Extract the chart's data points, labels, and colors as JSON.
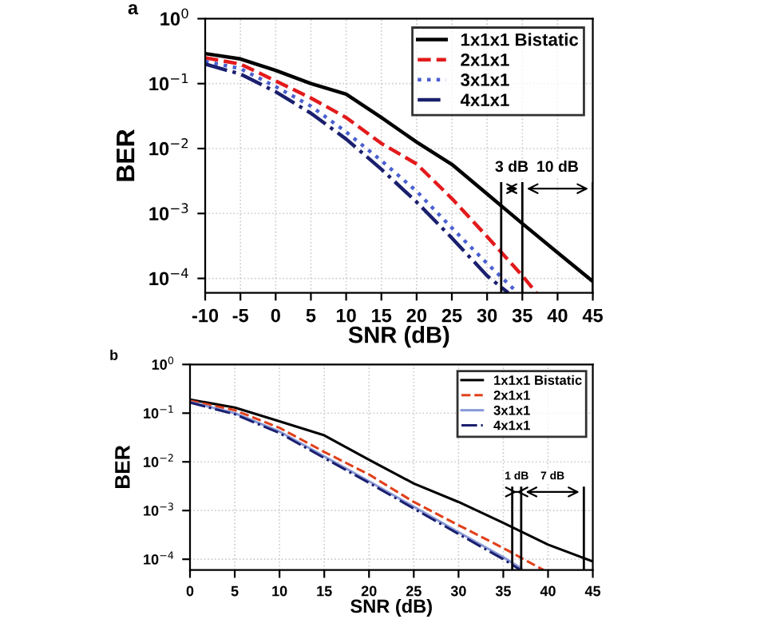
{
  "chart_data": [
    {
      "type": "line",
      "title": "a",
      "xlabel": "SNR (dB)",
      "ylabel": "BER",
      "log": "y",
      "xlim": [
        -10,
        45
      ],
      "xticks": [
        -10,
        -5,
        0,
        5,
        10,
        15,
        20,
        25,
        30,
        35,
        40,
        45
      ],
      "ylim": [
        6e-05,
        1
      ],
      "yticks": [
        {
          "value": 1,
          "label": "10$^{0}$"
        },
        {
          "value": 0.1,
          "label": "10$^{−1}$"
        },
        {
          "value": 0.01,
          "label": "10$^{−2}$"
        },
        {
          "value": 0.001,
          "label": "10$^{−3}$"
        },
        {
          "value": 0.0001,
          "label": "10$^{−4}$"
        }
      ],
      "grid": true,
      "legend": "top right",
      "series": [
        {
          "name": "1x1x1 Bistatic",
          "color": "#000000",
          "line_style": "solid",
          "x": [
            -10,
            -5,
            0,
            5,
            10,
            15,
            20,
            25,
            30,
            35,
            40,
            45
          ],
          "values": [
            0.29,
            0.24,
            0.16,
            0.1,
            0.069,
            0.03,
            0.0126,
            0.0057,
            0.002,
            0.0007,
            0.00025,
            9e-05
          ]
        },
        {
          "name": "2x1x1",
          "color": "#e31a1c",
          "line_style": "dashed",
          "x": [
            -10,
            -5,
            0,
            5,
            10,
            15,
            20,
            25,
            30,
            35,
            37
          ],
          "values": [
            0.25,
            0.2,
            0.11,
            0.06,
            0.03,
            0.012,
            0.0058,
            0.0017,
            0.00044,
            0.00011,
            6e-05
          ]
        },
        {
          "name": "3x1x1",
          "color": "#4a5fd0",
          "line_style": "dotted",
          "x": [
            -10,
            -5,
            0,
            5,
            10,
            15,
            20,
            25,
            30,
            34
          ],
          "values": [
            0.22,
            0.17,
            0.09,
            0.045,
            0.018,
            0.0065,
            0.0022,
            0.0006,
            0.00017,
            6.5e-05
          ]
        },
        {
          "name": "4x1x1",
          "color": "#1a1f6e",
          "line_style": "dashdot",
          "x": [
            -10,
            -5,
            0,
            5,
            10,
            15,
            20,
            25,
            30,
            33
          ],
          "values": [
            0.2,
            0.14,
            0.075,
            0.035,
            0.014,
            0.0048,
            0.0015,
            0.00042,
            0.00011,
            6e-05
          ]
        }
      ],
      "ref_lines": [
        {
          "axis": "x",
          "value": 32,
          "color": "#000000"
        },
        {
          "axis": "x",
          "value": 35,
          "color": "#000000"
        },
        {
          "axis": "x",
          "value": 45,
          "color": "#000000"
        }
      ],
      "annotations": [
        "3 dB",
        "10 dB"
      ]
    },
    {
      "type": "line",
      "title": "b",
      "xlabel": "SNR (dB)",
      "ylabel": "BER",
      "log": "y",
      "xlim": [
        0,
        45
      ],
      "xticks": [
        0,
        5,
        10,
        15,
        20,
        25,
        30,
        35,
        40,
        45
      ],
      "ylim": [
        6e-05,
        1
      ],
      "yticks": [
        {
          "value": 1,
          "label": "10$^{0}$"
        },
        {
          "value": 0.1,
          "label": "10$^{−1}$"
        },
        {
          "value": 0.01,
          "label": "10$^{−2}$"
        },
        {
          "value": 0.001,
          "label": "10$^{−3}$"
        },
        {
          "value": 0.0001,
          "label": "10$^{−4}$"
        }
      ],
      "grid": true,
      "legend": "top right",
      "series": [
        {
          "name": "1x1x1 Bistatic",
          "color": "#000000",
          "line_style": "solid",
          "x": [
            0,
            5,
            10,
            15,
            20,
            25,
            30,
            35,
            40,
            45
          ],
          "values": [
            0.19,
            0.13,
            0.068,
            0.035,
            0.011,
            0.0036,
            0.0015,
            0.00056,
            0.0002,
            9e-05
          ]
        },
        {
          "name": "2x1x1",
          "color": "#e0401a",
          "line_style": "dashed",
          "x": [
            0,
            5,
            10,
            15,
            20,
            25,
            30,
            35,
            39.5
          ],
          "values": [
            0.18,
            0.115,
            0.05,
            0.016,
            0.0055,
            0.0015,
            0.0005,
            0.00017,
            6e-05
          ]
        },
        {
          "name": "3x1x1",
          "color": "#8a9ad8",
          "line_style": "solid",
          "x": [
            0,
            5,
            10,
            15,
            20,
            25,
            30,
            35,
            37
          ],
          "values": [
            0.17,
            0.1,
            0.042,
            0.013,
            0.004,
            0.0012,
            0.00036,
            0.00011,
            6.5e-05
          ]
        },
        {
          "name": "4x1x1",
          "color": "#1a1f6e",
          "line_style": "dashdot",
          "x": [
            0,
            5,
            10,
            15,
            20,
            25,
            30,
            35,
            36.8
          ],
          "values": [
            0.165,
            0.095,
            0.039,
            0.012,
            0.0037,
            0.0011,
            0.00033,
            0.0001,
            6.2e-05
          ]
        }
      ],
      "ref_lines": [
        {
          "axis": "x",
          "value": 36,
          "color": "#000000"
        },
        {
          "axis": "x",
          "value": 37,
          "color": "#000000"
        },
        {
          "axis": "x",
          "value": 44,
          "color": "#000000"
        }
      ],
      "annotations": [
        "1 dB",
        "7 dB"
      ]
    }
  ]
}
